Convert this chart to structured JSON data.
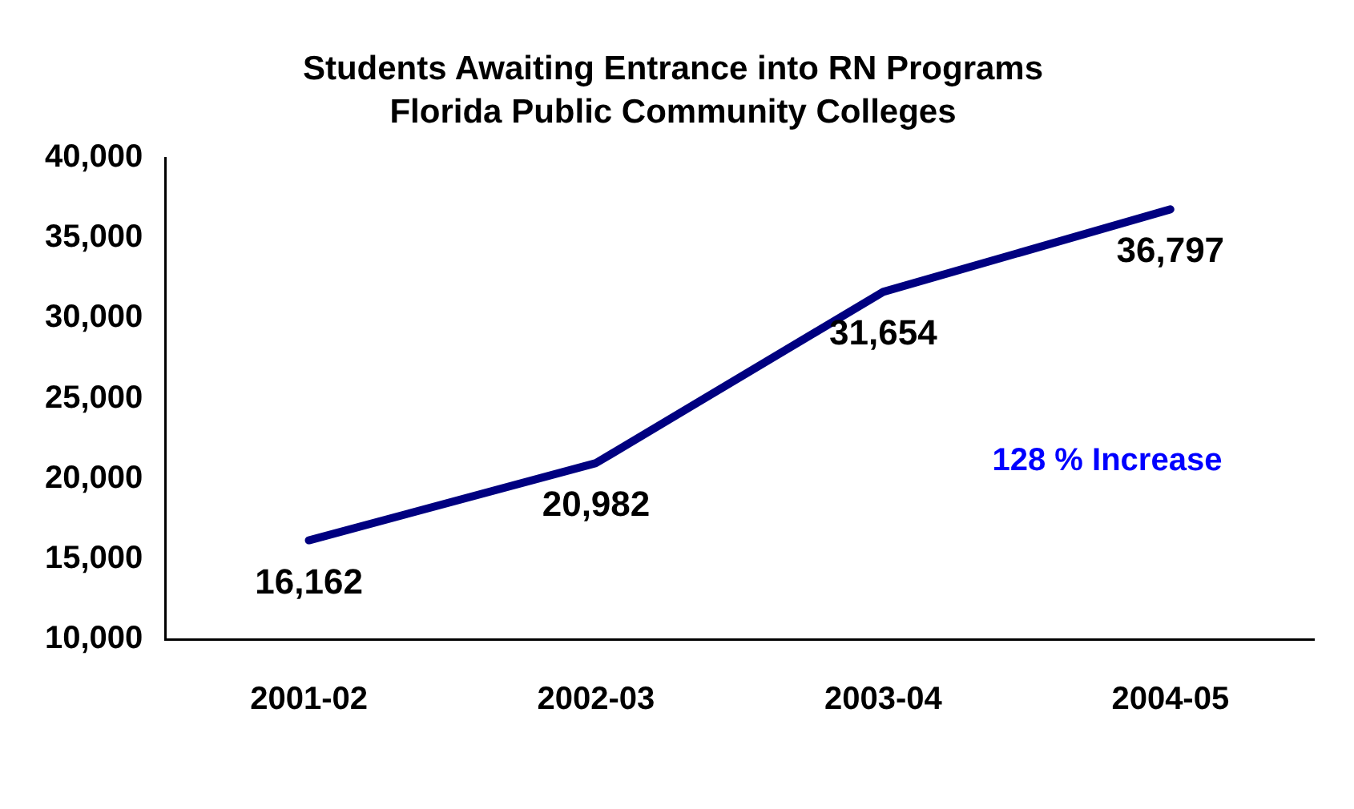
{
  "chart_data": {
    "type": "line",
    "title": "Students Awaiting Entrance into RN Programs\nFlorida Public Community Colleges",
    "categories": [
      "2001-02",
      "2002-03",
      "2003-04",
      "2004-05"
    ],
    "series": [
      {
        "color": "#000080",
        "values": [
          16162,
          20982,
          31654,
          36797
        ],
        "value_labels": [
          "16,162",
          "20,982",
          "31,654",
          "36,797"
        ]
      }
    ],
    "ylim": [
      10000,
      40000
    ],
    "yticks": [
      {
        "value": 10000,
        "label": "10,000"
      },
      {
        "value": 15000,
        "label": "15,000"
      },
      {
        "value": 20000,
        "label": "20,000"
      },
      {
        "value": 25000,
        "label": "25,000"
      },
      {
        "value": 30000,
        "label": "30,000"
      },
      {
        "value": 35000,
        "label": "35,000"
      },
      {
        "value": 40000,
        "label": "40,000"
      }
    ],
    "grid": false,
    "legend": false,
    "marker": "none",
    "line_style": "solid",
    "annotations": [
      "128 % Increase"
    ]
  }
}
